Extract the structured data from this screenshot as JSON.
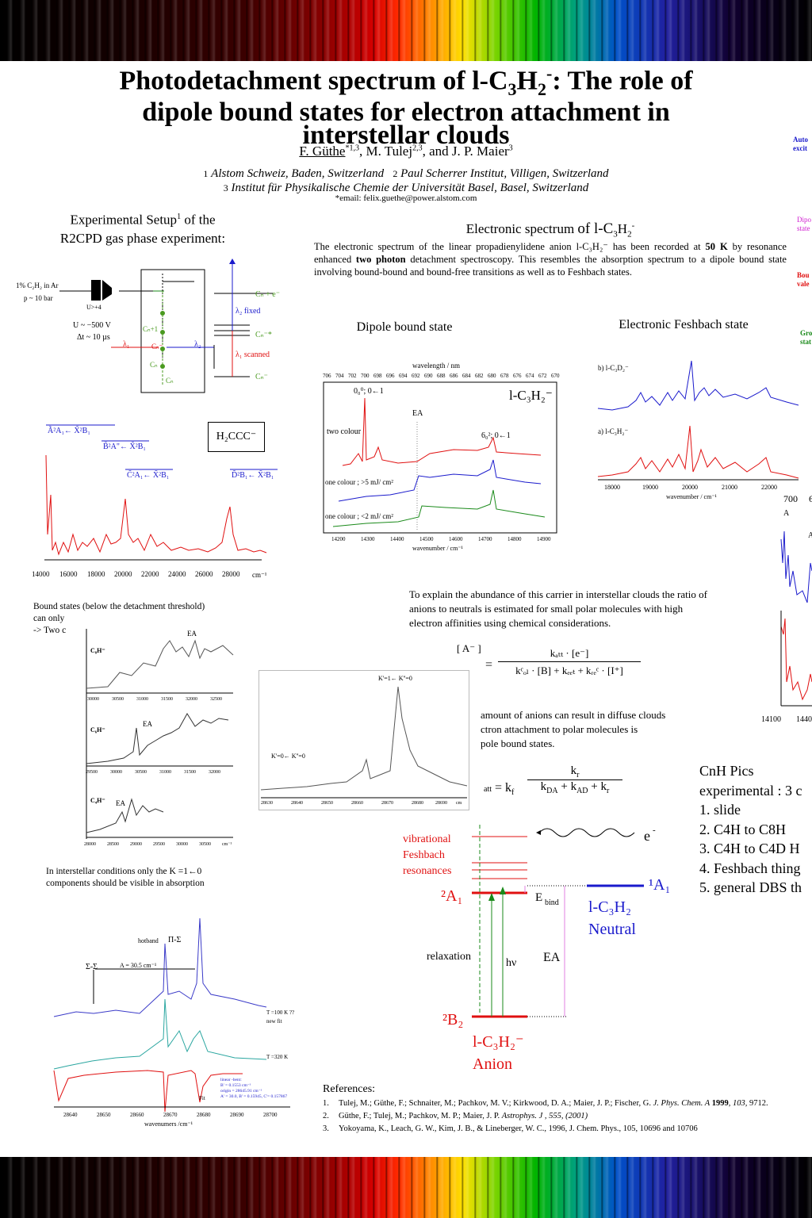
{
  "header": {
    "title_line1": "Photodetachment spectrum of l-C",
    "title_sub1": "3",
    "title_mid": "H",
    "title_sub2": "2",
    "title_sup": "-",
    "title_rest1": ": The role of",
    "title_line2": "dipole bound states for electron attachment in",
    "title_line3": "interstellar clouds",
    "authors_first": "F. Güthe",
    "authors_first_sup": "*1,3",
    "authors_rest": ", M. Tulej",
    "authors_rest_sup": "2,3",
    "authors_last": ", and J. P. Maier",
    "authors_last_sup": "3",
    "affil1_num": "1",
    "affil1": "Alstom Schweiz, Baden, Switzerland",
    "affil2_num": "2",
    "affil2": "Paul Scherrer Institut, Villigen, Switzerland",
    "affil3_num": "3",
    "affil3": "Institut für Physikalische Chemie der Universität Basel, Basel, Switzerland",
    "email": "*email: felix.guethe@power.alstom.com"
  },
  "right_edge": {
    "auto1": "Auto",
    "auto2": "excit",
    "dipo1": "Dipo",
    "dipo2": "state",
    "bou1": "Bou",
    "bou2": "vale",
    "gro1": "Gro",
    "gro2": "stat",
    "num700": "700",
    "num6": "6",
    "a1": "A",
    "a1b": "A",
    "axis_14100": "14100",
    "axis_1440": "1440"
  },
  "setup": {
    "heading1": "Experimental Setup",
    "heading_sup": "1",
    "heading1b": " of the",
    "heading2": "R2CPD gas phase experiment:",
    "gas": "1% C₂H₂ in Ar",
    "pressure": "p ~ 10 bar",
    "voltage": "U ~ −500 V",
    "delay": "Δt ~ 10 µs",
    "lambda1": "λ₁",
    "lambda2": "λ₂",
    "cn_e": "Cₙ + e⁻",
    "lambda2_fixed": "λ₂ fixed",
    "cn_star": "Cₙ⁻*",
    "lambda1_scanned": "λ₁ scanned",
    "cn_minus": "Cₙ⁻",
    "cn1": "Cₙ+1",
    "cnm": "Cₙ⁻",
    "cn_small": "Cₙ",
    "cn_bottom": "Cₙ",
    "u_label": "U>+4"
  },
  "survey": {
    "label_h2ccc": "H₂CCC⁻",
    "tr1": "Ã²A₁← X̃²B₁",
    "tr2": "B̃²A\"← X̃²B₁",
    "tr3": "C̃²A₁← X̃²B₁",
    "tr4": "D̃²B₁← X̃²B₁",
    "ticks": [
      "14000",
      "16000",
      "18000",
      "20000",
      "22000",
      "24000",
      "26000",
      "28000"
    ],
    "unit": "cm⁻¹"
  },
  "electronic": {
    "heading": "Electronic spectrum ",
    "heading_of": "of l-C",
    "body_a": "The electronic spectrum of the linear propadienylidene anion l-C₃H₂⁻ has been recorded at ",
    "body_b": "50 K",
    "body_c": " by resonance enhanced ",
    "body_d": "two photon",
    "body_e": " detachment spectroscopy. This resembles the absorption spectrum to a dipole bound state involving bound-bound and bound-free transitions as well as to Feshbach states."
  },
  "dipole_panel": {
    "heading": "Dipole bound state",
    "top_axis_label": "wavelength / nm",
    "top_ticks": [
      "706",
      "704",
      "702",
      "700",
      "698",
      "696",
      "694",
      "692",
      "690",
      "688",
      "686",
      "684",
      "682",
      "680",
      "678",
      "676",
      "674",
      "672",
      "670"
    ],
    "molecule": "l-C₃H₂⁻",
    "origin": "0₀⁰; 0←1",
    "ea": "EA",
    "two_colour": "two colour",
    "six": "6₀²; 0←1",
    "one_colour_hi": "one colour ; >5 mJ/ cm²",
    "one_colour_lo": "one colour ; <2 mJ/ cm²",
    "bottom_ticks": [
      "14200",
      "14300",
      "14400",
      "14500",
      "14600",
      "14700",
      "14800",
      "14900"
    ],
    "bottom_label": "wavenumber / cm⁻¹"
  },
  "feshbach_panel": {
    "heading": "Electronic Feshbach state",
    "b_label": "b) l-C₃D₂⁻",
    "a_label": "a) l-C₃H₂⁻",
    "ticks": [
      "18000",
      "19000",
      "20000",
      "21000",
      "22000"
    ],
    "axis_label": "wavenumber / cm⁻¹"
  },
  "bound": {
    "line1": "Bound states (below the detachment threshold)",
    "line2": "can only",
    "line3": "-> Two c"
  },
  "cnh_panel": {
    "c8": "C₈H⁻",
    "c6": "C₆H⁻",
    "c4": "C₄H⁻",
    "ea": "EA",
    "ticks1": [
      "30000",
      "30500",
      "31000",
      "31500",
      "32000",
      "32500"
    ],
    "ticks2": [
      "29500",
      "30000",
      "30500",
      "31000",
      "31500",
      "32000"
    ],
    "ticks3": [
      "28000",
      "28500",
      "29000",
      "29500",
      "30000",
      "30500"
    ],
    "unit": "cm⁻¹"
  },
  "k_panel": {
    "k1": "K'=1← K''=0",
    "k0": "K'=0← K''=0",
    "ticks": [
      "28630",
      "28640",
      "28650",
      "28660",
      "28670",
      "28680",
      "28690"
    ],
    "unit": "cm"
  },
  "interstellar": {
    "line1": "In interstellar conditions only the K =1←0",
    "line2": "components should be visible in absorption"
  },
  "explain": {
    "text": "To explain the abundance of this carrier in interstellar clouds the ratio of anions to neutrals is estimated for small polar molecules with high electron affinities using chemical considerations.",
    "frac_num": "kₐₜₜ · [e⁻]",
    "frac_den": "kᶜₒₗ · [B] + kₑₑₜ + kᵣₑᶜ · [I⁺]",
    "bracket": "[ A⁻ ]",
    "line_a": "amount of anions can result in diffuse clouds",
    "line_b": "ctron attachment to polar molecules is",
    "line_c": "pole bound states.",
    "katt": "att",
    "kf": "= k",
    "kf_sub": "f",
    "kr_num": "k",
    "kr_sub": "r",
    "den": "k",
    "den_da": "DA",
    "den_ad": "AD",
    "den_r": "r"
  },
  "energy": {
    "vib": [
      "vibrational",
      "Feshbach",
      "resonances"
    ],
    "e_minus": "e",
    "e_sup": "-",
    "a1_neutral": "¹A₁",
    "l_c3h2": "l-C₃H₂",
    "neutral": "Neutral",
    "a1_anion": "²A₁",
    "ebind": "E",
    "ebind_sub": "bind",
    "relax": "relaxation",
    "hv": "hν",
    "ea": "EA",
    "b2": "²B₂",
    "anion_name": "l-C₃H₂⁻",
    "anion": "Anion"
  },
  "cnh_pics": {
    "lines": [
      "CnH Pics",
      "experimental : 3 c",
      "1.  slide",
      "2. C4H to C8H",
      "3. C4H to C4D H",
      "4. Feshbach thing",
      "5. general DBS th"
    ]
  },
  "hot_panel": {
    "hotband": "hotband",
    "pi_sigma": "Π-Σ",
    "sigma_sigma": "Σ-Σ",
    "a_const": "A = 30.5 cm⁻¹",
    "t100": "T =100 K  ??",
    "newfit": "new fit",
    "t320": "T =320 K",
    "fit": "Fit",
    "fitparams": [
      "linear -bent:",
      "B' =  0.1553 cm⁻¹",
      "origin =  28645.91 cm⁻¹",
      "A' =  30.0,  B' = 0.15945, C'= 0.157867"
    ],
    "ticks": [
      "28640",
      "28650",
      "28660",
      "28670",
      "28680",
      "28690",
      "28700"
    ],
    "axis_label": "wavenumers /cm⁻¹"
  },
  "references": {
    "heading": "References:",
    "items": [
      {
        "num": "1.",
        "a": "Tulej, M.; Güthe, F.; Schnaiter, M.; Pachkov, M. V.; Kirkwood, D. A.; Maier, J. P.; Fischer, G. ",
        "b": "J. Phys. Chem. A",
        "c": " ",
        "d": "1999",
        "e": ", ",
        "f": "103,",
        "g": " 9712."
      },
      {
        "num": "2.",
        "a": "Güthe, F.; Tulej, M.; Pachkov, M. P.; Maier, J. P. ",
        "b": "Astrophys. J , 555, (2001)",
        "c": "",
        "d": "",
        "e": "",
        "f": "",
        "g": ""
      },
      {
        "num": "3.",
        "a": "Yokoyama, K., Leach, G. W., Kim, J. B., & Lineberger, W. C., 1996, J. Chem. Phys., 105, 10696 and 10706",
        "b": "",
        "c": "",
        "d": "",
        "e": "",
        "f": "",
        "g": ""
      }
    ]
  },
  "colors": {
    "blue": "#1a1acc",
    "red": "#e01010",
    "green": "#1a8a1a",
    "magenta": "#d020d0",
    "setup_green": "#4a9a20"
  }
}
